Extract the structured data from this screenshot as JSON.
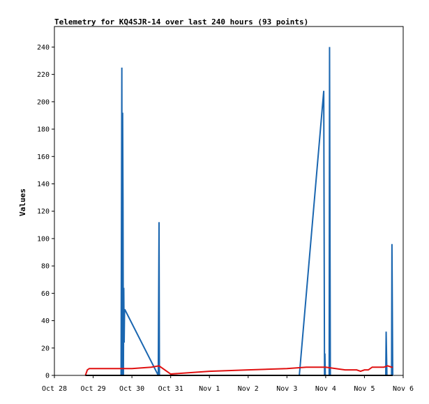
{
  "chart_data": {
    "type": "line",
    "title": "Telemetry for KQ4SJR-14 over last 240 hours (93 points)",
    "ylabel": "Values",
    "xlabel": "",
    "x_range": [
      "Oct 28",
      "Nov 6"
    ],
    "ylim": [
      0,
      255
    ],
    "y_ticks": [
      0,
      20,
      40,
      60,
      80,
      100,
      120,
      140,
      160,
      180,
      200,
      220,
      240
    ],
    "x_ticks": [
      {
        "label": "Oct 28",
        "day": 0
      },
      {
        "label": "Oct 29",
        "day": 1
      },
      {
        "label": "Oct 30",
        "day": 2
      },
      {
        "label": "Oct 31",
        "day": 3
      },
      {
        "label": "Nov 1",
        "day": 4
      },
      {
        "label": "Nov 2",
        "day": 5
      },
      {
        "label": "Nov 3",
        "day": 6
      },
      {
        "label": "Nov 4",
        "day": 7
      },
      {
        "label": "Nov 5",
        "day": 8
      },
      {
        "label": "Nov 6",
        "day": 9
      }
    ],
    "grid": false,
    "series": [
      {
        "color": "#1a66b0",
        "x_days": [
          0.8,
          1.72,
          1.73,
          1.74,
          1.75,
          1.76,
          1.77,
          1.78,
          1.79,
          1.8,
          1.81,
          1.82,
          2.68,
          2.69,
          2.7,
          2.71,
          6.32,
          6.95,
          6.96,
          6.97,
          6.98,
          6.99,
          7.09,
          7.1,
          7.11,
          7.12,
          8.55,
          8.56,
          8.57,
          8.58,
          8.7,
          8.71,
          8.72,
          8.73
        ],
        "values": [
          0,
          0,
          112,
          225,
          0,
          192,
          128,
          0,
          64,
          24,
          48,
          48,
          0,
          56,
          112,
          0,
          0,
          208,
          104,
          0,
          16,
          0,
          0,
          240,
          120,
          0,
          0,
          32,
          16,
          0,
          0,
          96,
          48,
          0
        ]
      },
      {
        "color": "#e01010",
        "x_days": [
          0.8,
          0.85,
          0.9,
          1.0,
          1.5,
          2.0,
          2.5,
          2.7,
          3.0,
          4.0,
          5.0,
          6.0,
          6.5,
          7.0,
          7.5,
          7.8,
          7.9,
          8.0,
          8.1,
          8.2,
          8.3,
          8.5,
          8.6,
          8.7,
          8.73
        ],
        "values": [
          0,
          4,
          5,
          5,
          5,
          5,
          6,
          7,
          1,
          3,
          4,
          5,
          6,
          6,
          4,
          4,
          3,
          4,
          4,
          6,
          6,
          6,
          7,
          6,
          6
        ]
      },
      {
        "color": "#000000",
        "x_days": [
          0.8,
          8.73
        ],
        "values": [
          0,
          0
        ]
      }
    ]
  }
}
